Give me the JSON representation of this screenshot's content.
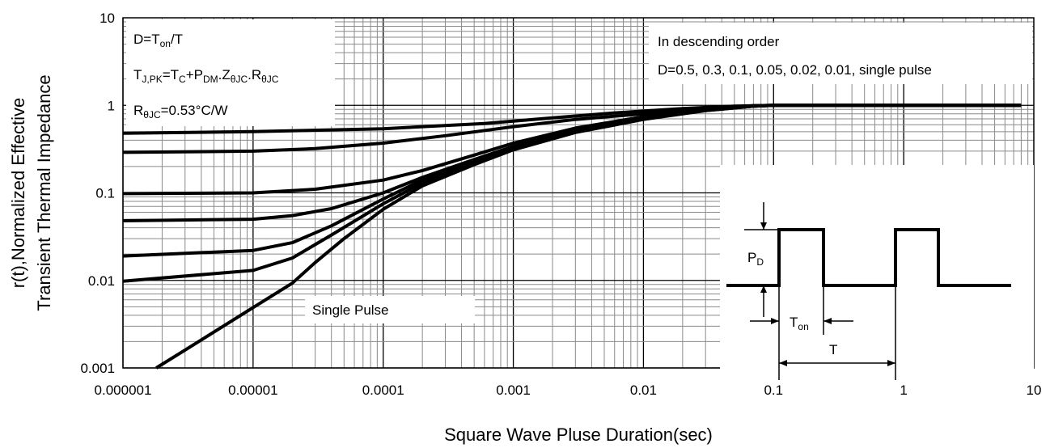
{
  "chart_data": {
    "type": "line",
    "x_scale": "log",
    "y_scale": "log",
    "xlim": [
      1e-06,
      10
    ],
    "ylim": [
      0.001,
      10
    ],
    "xlabel": "Square Wave Pluse Duration(sec)",
    "ylabel_lines": [
      "r(t),Normalized Effective",
      "Transient Thermal Impedance"
    ],
    "x_ticks": [
      {
        "value": 1e-06,
        "label": "0.000001"
      },
      {
        "value": 1e-05,
        "label": "0.00001"
      },
      {
        "value": 0.0001,
        "label": "0.0001"
      },
      {
        "value": 0.001,
        "label": "0.001"
      },
      {
        "value": 0.01,
        "label": "0.01"
      },
      {
        "value": 0.1,
        "label": "0.1"
      },
      {
        "value": 1,
        "label": "1"
      },
      {
        "value": 10,
        "label": "10"
      }
    ],
    "y_ticks": [
      {
        "value": 0.001,
        "label": "0.001"
      },
      {
        "value": 0.01,
        "label": "0.01"
      },
      {
        "value": 0.1,
        "label": "0.1"
      },
      {
        "value": 1,
        "label": "1"
      },
      {
        "value": 10,
        "label": "10"
      }
    ],
    "grid": "minor-log",
    "series": [
      {
        "points": [
          [
            1e-06,
            0.48
          ],
          [
            1e-05,
            0.5
          ],
          [
            0.0001,
            0.54
          ],
          [
            0.0006,
            0.62
          ],
          [
            0.002,
            0.72
          ],
          [
            0.006,
            0.82
          ],
          [
            0.02,
            0.92
          ],
          [
            0.05,
            0.98
          ],
          [
            0.1,
            1.0
          ],
          [
            1,
            1.0
          ],
          [
            8,
            1.0
          ]
        ]
      },
      {
        "points": [
          [
            1e-06,
            0.29
          ],
          [
            1e-05,
            0.3
          ],
          [
            3e-05,
            0.32
          ],
          [
            0.0001,
            0.37
          ],
          [
            0.0003,
            0.45
          ],
          [
            0.001,
            0.57
          ],
          [
            0.003,
            0.69
          ],
          [
            0.01,
            0.8
          ],
          [
            0.03,
            0.92
          ],
          [
            0.07,
            0.99
          ],
          [
            0.1,
            1.0
          ],
          [
            1,
            1.0
          ],
          [
            8,
            1.0
          ]
        ]
      },
      {
        "points": [
          [
            1e-06,
            0.098
          ],
          [
            1e-05,
            0.1
          ],
          [
            3e-05,
            0.11
          ],
          [
            0.0001,
            0.14
          ],
          [
            0.0002,
            0.18
          ],
          [
            0.0005,
            0.27
          ],
          [
            0.001,
            0.37
          ],
          [
            0.003,
            0.55
          ],
          [
            0.01,
            0.74
          ],
          [
            0.03,
            0.9
          ],
          [
            0.07,
            0.99
          ],
          [
            0.1,
            1.0
          ],
          [
            1,
            1.0
          ],
          [
            8,
            1.0
          ]
        ]
      },
      {
        "points": [
          [
            1e-06,
            0.048
          ],
          [
            1e-05,
            0.05
          ],
          [
            2e-05,
            0.055
          ],
          [
            4e-05,
            0.066
          ],
          [
            0.0001,
            0.1
          ],
          [
            0.0002,
            0.15
          ],
          [
            0.0005,
            0.24
          ],
          [
            0.001,
            0.34
          ],
          [
            0.003,
            0.52
          ],
          [
            0.01,
            0.72
          ],
          [
            0.03,
            0.88
          ],
          [
            0.07,
            0.98
          ],
          [
            0.1,
            1.0
          ],
          [
            1,
            1.0
          ],
          [
            8,
            1.0
          ]
        ]
      },
      {
        "points": [
          [
            1e-06,
            0.019
          ],
          [
            1e-05,
            0.022
          ],
          [
            2e-05,
            0.027
          ],
          [
            4e-05,
            0.042
          ],
          [
            0.0001,
            0.085
          ],
          [
            0.0002,
            0.14
          ],
          [
            0.0005,
            0.23
          ],
          [
            0.001,
            0.33
          ],
          [
            0.003,
            0.51
          ],
          [
            0.01,
            0.71
          ],
          [
            0.03,
            0.88
          ],
          [
            0.07,
            0.98
          ],
          [
            0.1,
            1.0
          ],
          [
            1,
            1.0
          ],
          [
            8,
            1.0
          ]
        ]
      },
      {
        "points": [
          [
            1e-06,
            0.0098
          ],
          [
            1e-05,
            0.013
          ],
          [
            2e-05,
            0.018
          ],
          [
            4e-05,
            0.033
          ],
          [
            0.0001,
            0.075
          ],
          [
            0.0002,
            0.13
          ],
          [
            0.0005,
            0.22
          ],
          [
            0.001,
            0.32
          ],
          [
            0.003,
            0.5
          ],
          [
            0.01,
            0.7
          ],
          [
            0.03,
            0.87
          ],
          [
            0.07,
            0.98
          ],
          [
            0.1,
            1.0
          ],
          [
            1,
            1.0
          ],
          [
            8,
            1.0
          ]
        ]
      },
      {
        "points": [
          [
            1.8e-06,
            0.001
          ],
          [
            3e-06,
            0.0016
          ],
          [
            1e-05,
            0.0049
          ],
          [
            2e-05,
            0.0093
          ],
          [
            3e-05,
            0.016
          ],
          [
            5e-05,
            0.03
          ],
          [
            0.0001,
            0.065
          ],
          [
            0.0002,
            0.12
          ],
          [
            0.0005,
            0.21
          ],
          [
            0.001,
            0.31
          ],
          [
            0.003,
            0.49
          ],
          [
            0.01,
            0.69
          ],
          [
            0.03,
            0.87
          ],
          [
            0.07,
            0.98
          ],
          [
            0.1,
            1.0
          ],
          [
            1,
            1.0
          ],
          [
            8,
            1.0
          ]
        ]
      }
    ],
    "notes": {
      "duty_def": {
        "pre": "D=T",
        "sub": "on",
        "post": "/T"
      },
      "tj_formula": [
        {
          "t": "T"
        },
        {
          "t": "J,PK",
          "sub": true
        },
        {
          "t": "=T"
        },
        {
          "t": "C",
          "sub": true
        },
        {
          "t": "+P"
        },
        {
          "t": "DM",
          "sub": true
        },
        {
          "t": ".Z"
        },
        {
          "t": "θJC",
          "sub": true
        },
        {
          "t": ".R"
        },
        {
          "t": "θJC",
          "sub": true
        }
      ],
      "rth_formula": [
        {
          "t": "R"
        },
        {
          "t": "θJC",
          "sub": true
        },
        {
          "t": "=0.53°C/W"
        }
      ],
      "order_line1": "In descending order",
      "order_line2": "D=0.5, 0.3, 0.1, 0.05, 0.02, 0.01, single pulse",
      "single_pulse": "Single Pulse"
    },
    "inset": {
      "pd": {
        "main": "P",
        "sub": "D"
      },
      "ton": {
        "main": "T",
        "sub": "on"
      },
      "period": "T"
    }
  }
}
